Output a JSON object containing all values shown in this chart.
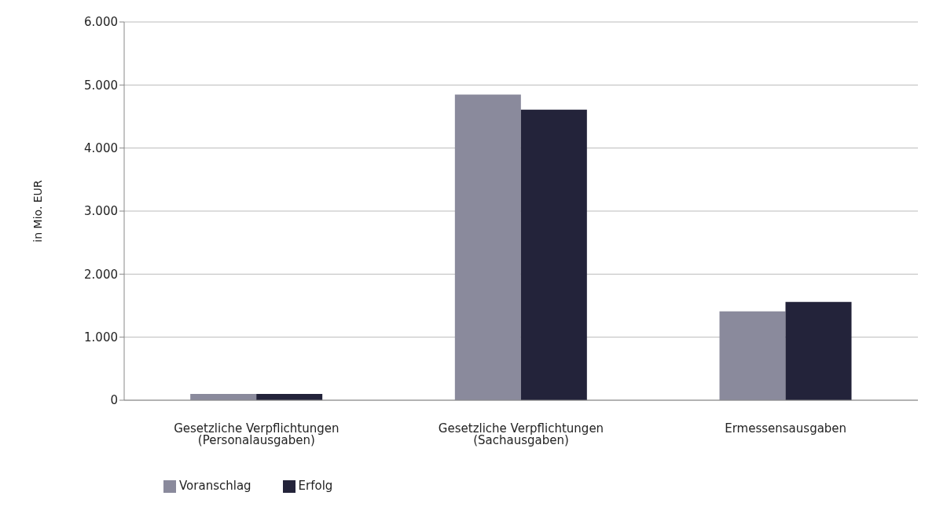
{
  "chart_data": {
    "type": "bar",
    "ylabel": "in Mio. EUR",
    "categories": [
      "Gesetzliche Verpflichtungen (Personalausgaben)",
      "Gesetzliche Verpflichtungen (Sachausgaben)",
      "Ermessensausgaben"
    ],
    "series": [
      {
        "name": "Voranschlag",
        "color": "#8a8a9c",
        "values": [
          100,
          4850,
          1410
        ]
      },
      {
        "name": "Erfolg",
        "color": "#23233a",
        "values": [
          100,
          4610,
          1560
        ]
      }
    ],
    "ylim": [
      0,
      6000
    ],
    "yticks": [
      {
        "value": 0,
        "label": "0"
      },
      {
        "value": 1000,
        "label": "1.000"
      },
      {
        "value": 2000,
        "label": "2.000"
      },
      {
        "value": 3000,
        "label": "3.000"
      },
      {
        "value": 4000,
        "label": "4.000"
      },
      {
        "value": 5000,
        "label": "5.000"
      },
      {
        "value": 6000,
        "label": "6.000"
      }
    ],
    "grid": "y",
    "legend": "bottom left"
  }
}
